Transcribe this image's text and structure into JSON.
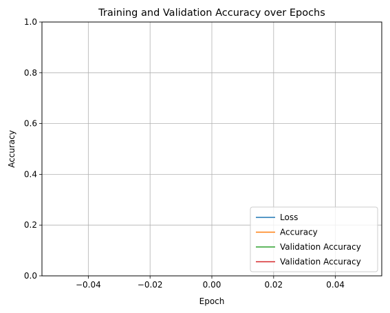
{
  "chart_data": {
    "type": "line",
    "title": "Training and Validation Accuracy over Epochs",
    "xlabel": "Epoch",
    "ylabel": "Accuracy",
    "xlim": [
      -0.055,
      0.055
    ],
    "ylim": [
      0,
      1
    ],
    "xticks": [
      -0.04,
      -0.02,
      0.0,
      0.02,
      0.04
    ],
    "xtick_labels": [
      "−0.04",
      "−0.02",
      "0.00",
      "0.02",
      "0.04"
    ],
    "yticks": [
      0.0,
      0.2,
      0.4,
      0.6,
      0.8,
      1.0
    ],
    "ytick_labels": [
      "0.0",
      "0.2",
      "0.4",
      "0.6",
      "0.8",
      "1.0"
    ],
    "grid": true,
    "legend_position": "lower-right",
    "series": [
      {
        "name": "Loss",
        "color": "#1f77b4",
        "x": [],
        "y": []
      },
      {
        "name": "Accuracy",
        "color": "#ff7f0e",
        "x": [],
        "y": []
      },
      {
        "name": "Validation Accuracy",
        "color": "#2ca02c",
        "x": [],
        "y": []
      },
      {
        "name": "Validation Accuracy",
        "color": "#d62728",
        "x": [],
        "y": []
      }
    ]
  }
}
